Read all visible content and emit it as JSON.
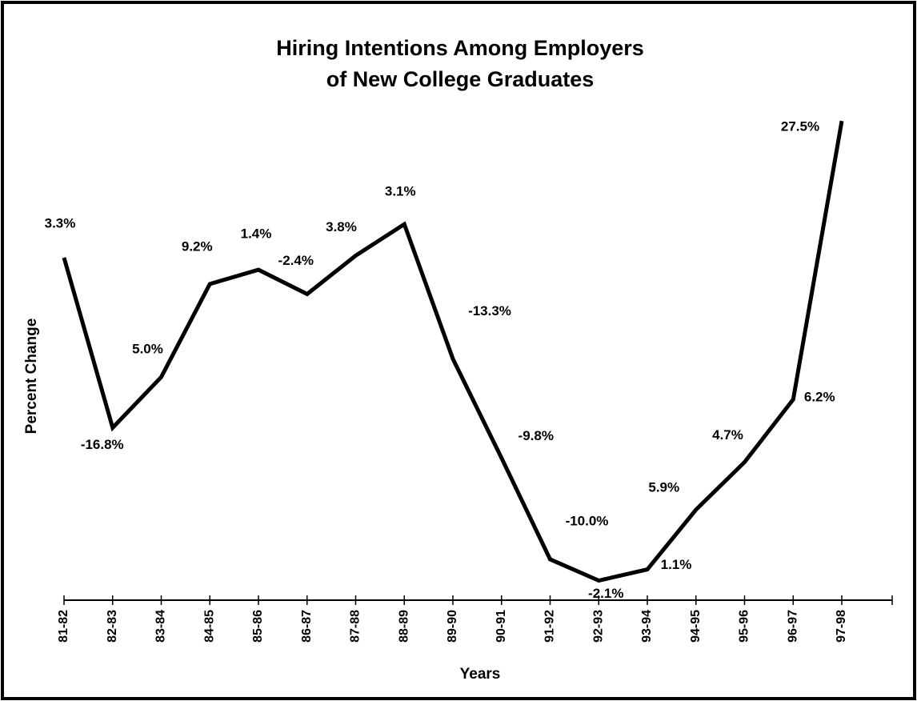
{
  "chart_data": {
    "type": "line",
    "title": [
      "Hiring Intentions Among Employers",
      "of New College Graduates"
    ],
    "x_label": "Years",
    "y_label": "Percent Change",
    "categories": [
      "81-82",
      "82-83",
      "83-84",
      "84-85",
      "85-86",
      "86-87",
      "87-88",
      "88-89",
      "89-90",
      "90-91",
      "91-92",
      "92-93",
      "93-94",
      "94-95",
      "95-96",
      "96-97",
      "97-98"
    ],
    "values": [
      3.3,
      -16.8,
      5.0,
      9.2,
      1.4,
      -2.4,
      3.8,
      3.1,
      -13.3,
      -9.8,
      -10.0,
      -2.1,
      1.1,
      5.9,
      4.7,
      6.2,
      27.5
    ],
    "value_labels": [
      "3.3%",
      "-16.8%",
      "5.0%",
      "9.2%",
      "1.4%",
      "-2.4%",
      "3.8%",
      "3.1%",
      "-13.3%",
      "-9.8%",
      "-10.0%",
      "-2.1%",
      "1.1%",
      "5.9%",
      "4.7%",
      "6.2%",
      "27.5%"
    ],
    "color": "#000000"
  }
}
